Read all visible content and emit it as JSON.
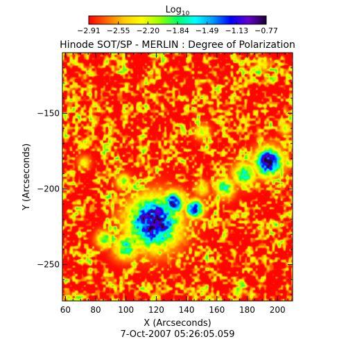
{
  "chart_data": {
    "type": "heatmap",
    "title": "Hinode SOT/SP - MERLIN : Degree of Polarization",
    "subtitle": "7-Oct-2007 05:26:05.059",
    "xlabel": "X (Arcseconds)",
    "ylabel": "Y (Arcseconds)",
    "xlim": [
      58,
      210
    ],
    "ylim": [
      -274,
      -110
    ],
    "xticks": [
      60,
      80,
      100,
      120,
      140,
      160,
      180,
      200
    ],
    "yticks": [
      -150,
      -200,
      -250
    ],
    "colorbar": {
      "label_base": "Log",
      "label_sub": "10",
      "ticks": [
        "-2.91",
        "-2.55",
        "-2.20",
        "-1.84",
        "-1.49",
        "-1.13",
        "-0.77"
      ],
      "range": [
        -2.91,
        -0.77
      ],
      "colormap": [
        "#ff0000",
        "#ff6600",
        "#ffcc00",
        "#ffff00",
        "#99ff00",
        "#00ff66",
        "#00ffff",
        "#0099ff",
        "#0000ff",
        "#6600cc",
        "#1a0033"
      ]
    },
    "background_level": -2.9,
    "features": [
      {
        "x": 118,
        "y": -222,
        "r": 20,
        "peak": -0.8
      },
      {
        "x": 131,
        "y": -209,
        "r": 9,
        "peak": -1.0
      },
      {
        "x": 145,
        "y": -213,
        "r": 7,
        "peak": -0.95
      },
      {
        "x": 194,
        "y": -182,
        "r": 11,
        "peak": -0.8
      },
      {
        "x": 178,
        "y": -190,
        "r": 9,
        "peak": -1.6
      },
      {
        "x": 165,
        "y": -199,
        "r": 8,
        "peak": -1.8
      },
      {
        "x": 100,
        "y": -238,
        "r": 10,
        "peak": -1.7
      },
      {
        "x": 86,
        "y": -233,
        "r": 7,
        "peak": -1.9
      },
      {
        "x": 98,
        "y": -195,
        "r": 6,
        "peak": -2.0
      },
      {
        "x": 150,
        "y": -162,
        "r": 6,
        "peak": -2.1
      },
      {
        "x": 150,
        "y": -200,
        "r": 6,
        "peak": -2.2
      },
      {
        "x": 205,
        "y": -160,
        "r": 5,
        "peak": -2.2
      },
      {
        "x": 72,
        "y": -182,
        "r": 5,
        "peak": -2.3
      },
      {
        "x": 190,
        "y": -118,
        "r": 6,
        "peak": -2.3
      }
    ]
  }
}
